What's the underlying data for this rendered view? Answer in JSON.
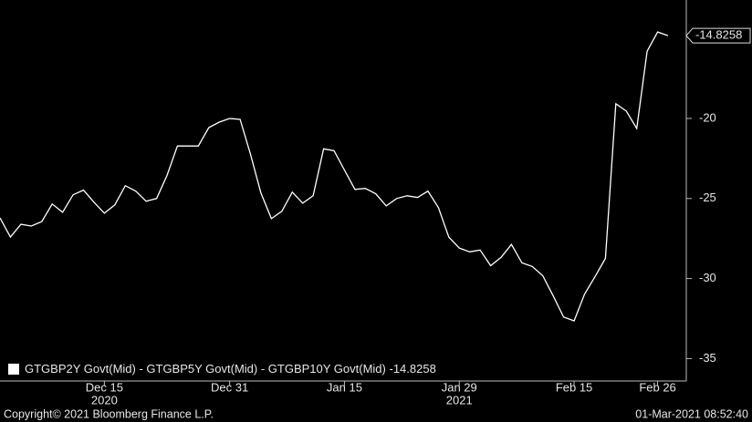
{
  "chart_data": {
    "type": "line",
    "series": [
      {
        "name": "GTGBP2Y Govt(Mid) - GTGBP5Y Govt(Mid) - GTGBP10Y Govt(Mid)",
        "color": "#ffffff",
        "values": [
          -26.21,
          -27.41,
          -26.61,
          -26.72,
          -26.44,
          -25.34,
          -25.86,
          -24.77,
          -24.48,
          -25.23,
          -25.92,
          -25.4,
          -24.2,
          -24.54,
          -25.17,
          -25.0,
          -23.56,
          -21.72,
          -21.72,
          -21.72,
          -20.57,
          -20.23,
          -20.0,
          -20.06,
          -22.24,
          -24.66,
          -26.26,
          -25.8,
          -24.6,
          -25.29,
          -24.83,
          -21.9,
          -22.01,
          -23.22,
          -24.43,
          -24.37,
          -24.71,
          -25.46,
          -25.0,
          -24.83,
          -24.94,
          -24.54,
          -25.57,
          -27.41,
          -28.1,
          -28.33,
          -28.22,
          -29.2,
          -28.68,
          -27.87,
          -29.02,
          -29.25,
          -29.83,
          -31.09,
          -32.41,
          -32.64,
          -30.98,
          -29.89,
          -28.74,
          -19.08,
          -19.54,
          -20.63,
          -15.8,
          -14.6,
          -14.8258
        ]
      }
    ],
    "categories": [
      null,
      null,
      null,
      null,
      null,
      null,
      null,
      null,
      null,
      null,
      "Dec 15",
      null,
      null,
      null,
      null,
      null,
      null,
      null,
      null,
      null,
      null,
      null,
      "Dec 31",
      null,
      null,
      null,
      null,
      null,
      null,
      null,
      null,
      null,
      null,
      "Jan 15",
      null,
      null,
      null,
      null,
      null,
      null,
      null,
      null,
      null,
      null,
      "Jan 29",
      null,
      null,
      null,
      null,
      null,
      null,
      null,
      null,
      null,
      null,
      "Feb 15",
      null,
      null,
      null,
      null,
      null,
      null,
      null,
      "Feb 26",
      null
    ],
    "years": [
      null,
      null,
      null,
      null,
      null,
      null,
      null,
      null,
      null,
      null,
      "2020",
      null,
      null,
      null,
      null,
      null,
      null,
      null,
      null,
      null,
      null,
      null,
      null,
      null,
      null,
      null,
      null,
      null,
      null,
      null,
      null,
      null,
      null,
      null,
      null,
      null,
      null,
      null,
      null,
      null,
      null,
      null,
      null,
      null,
      "2021",
      null,
      null,
      null,
      null,
      null,
      null,
      null,
      null,
      null,
      null,
      null,
      null,
      null,
      null,
      null,
      null,
      null,
      null,
      null,
      null
    ],
    "ylim": [
      -36.4,
      -12.6
    ],
    "yticks": [
      -20,
      -25,
      -30,
      -35
    ],
    "copyright": "Copyright© 2021 Bloomberg Finance L.P.",
    "timestamp": "01-Mar-2021 08:52:40"
  }
}
